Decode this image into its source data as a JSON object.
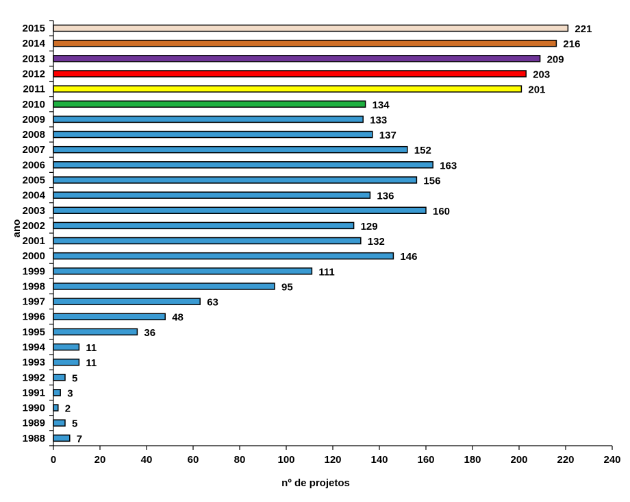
{
  "chart_data": {
    "type": "bar",
    "orientation": "horizontal",
    "xlabel": "nº de projetos",
    "ylabel": "ano",
    "xlim": [
      0,
      240
    ],
    "x_ticks": [
      "0",
      "20",
      "40",
      "60",
      "80",
      "100",
      "120",
      "140",
      "160",
      "180",
      "200",
      "220",
      "240"
    ],
    "grid": false,
    "legend": "none",
    "categories": [
      "2015",
      "2014",
      "2013",
      "2012",
      "2011",
      "2010",
      "2009",
      "2008",
      "2007",
      "2006",
      "2005",
      "2004",
      "2003",
      "2002",
      "2001",
      "2000",
      "1999",
      "1998",
      "1997",
      "1996",
      "1995",
      "1994",
      "1993",
      "1992",
      "1991",
      "1990",
      "1989",
      "1988"
    ],
    "values": [
      221,
      216,
      209,
      203,
      201,
      134,
      133,
      137,
      152,
      163,
      156,
      136,
      160,
      129,
      132,
      146,
      111,
      95,
      63,
      48,
      36,
      11,
      11,
      5,
      3,
      2,
      5,
      7
    ],
    "value_labels": [
      "221",
      "216",
      "209",
      "203",
      "201",
      "134",
      "133",
      "137",
      "152",
      "163",
      "156",
      "136",
      "160",
      "129",
      "132",
      "146",
      "111",
      "95",
      "63",
      "48",
      "36",
      "11",
      "11",
      "5",
      "3",
      "2",
      "5",
      "7"
    ],
    "colors": [
      "#f2dcc8",
      "#d07028",
      "#6f3598",
      "#ff0000",
      "#ffff00",
      "#1fb040",
      "#3a9ad2",
      "#3a9ad2",
      "#3a9ad2",
      "#3a9ad2",
      "#3a9ad2",
      "#3a9ad2",
      "#3a9ad2",
      "#3a9ad2",
      "#3a9ad2",
      "#3a9ad2",
      "#3a9ad2",
      "#3a9ad2",
      "#3a9ad2",
      "#3a9ad2",
      "#3a9ad2",
      "#3a9ad2",
      "#3a9ad2",
      "#3a9ad2",
      "#3a9ad2",
      "#3a9ad2",
      "#3a9ad2",
      "#3a9ad2"
    ]
  }
}
